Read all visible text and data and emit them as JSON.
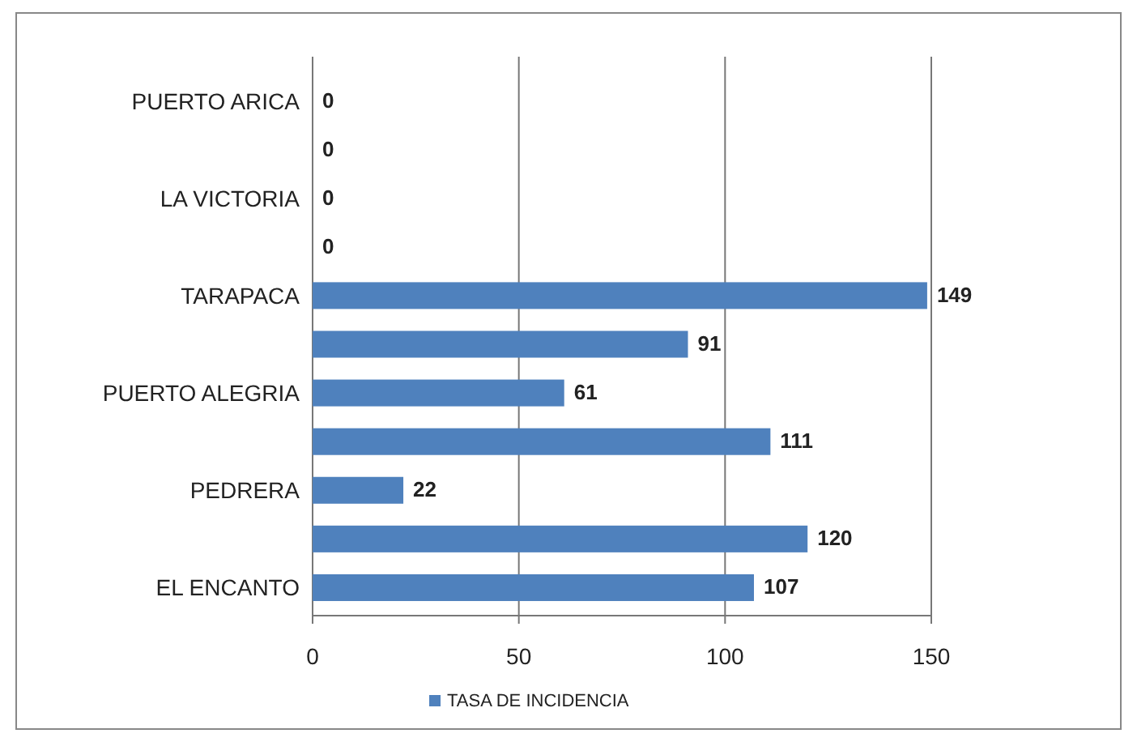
{
  "chart_data": {
    "type": "bar",
    "orientation": "horizontal",
    "categories": [
      "PUERTO ARICA",
      null,
      "LA VICTORIA",
      null,
      "TARAPACA",
      null,
      "PUERTO ALEGRIA",
      null,
      "PEDRERA",
      null,
      "EL ENCANTO"
    ],
    "series": [
      {
        "name": "TASA DE INCIDENCIA",
        "color": "#4f81bd",
        "values": [
          0,
          0,
          0,
          0,
          149,
          91,
          61,
          111,
          22,
          120,
          107
        ]
      }
    ],
    "xlim": [
      0,
      150
    ],
    "xticks": [
      0,
      50,
      100,
      150
    ],
    "grid": "x",
    "legend": "bottom",
    "data_labels": true
  }
}
